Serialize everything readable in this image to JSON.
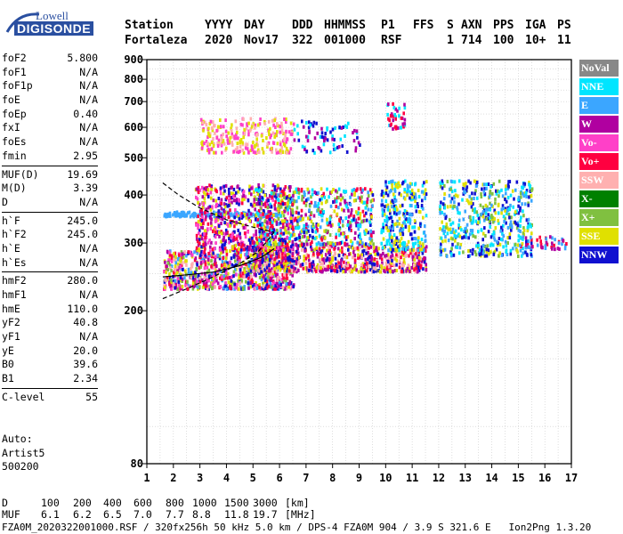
{
  "logo": {
    "line1": "Lowell",
    "line2": "DIGISONDE"
  },
  "header": {
    "labels": [
      "Station",
      "YYYY",
      "DAY",
      "DDD",
      "HHMMSS",
      "P1",
      "FFS",
      "S",
      "AXN",
      "PPS",
      "IGA",
      "PS"
    ],
    "values": [
      "Fortaleza",
      "2020",
      "Nov17",
      "322",
      "001000",
      "RSF",
      "1",
      "714",
      "100",
      "10+",
      "11"
    ]
  },
  "params": [
    [
      {
        "k": "foF2",
        "v": "5.800"
      },
      {
        "k": "foF1",
        "v": "N/A"
      },
      {
        "k": "foF1p",
        "v": "N/A"
      },
      {
        "k": "foE",
        "v": "N/A"
      },
      {
        "k": "foEp",
        "v": "0.40"
      },
      {
        "k": "fxI",
        "v": "N/A"
      },
      {
        "k": "foEs",
        "v": "N/A"
      },
      {
        "k": "fmin",
        "v": "2.95"
      }
    ],
    [
      {
        "k": "MUF(D)",
        "v": "19.69"
      },
      {
        "k": "M(D)",
        "v": "3.39"
      },
      {
        "k": "D",
        "v": "N/A"
      }
    ],
    [
      {
        "k": "h`F",
        "v": "245.0"
      },
      {
        "k": "h`F2",
        "v": "245.0"
      },
      {
        "k": "h`E",
        "v": "N/A"
      },
      {
        "k": "h`Es",
        "v": "N/A"
      }
    ],
    [
      {
        "k": "hmF2",
        "v": "280.0"
      },
      {
        "k": "hmF1",
        "v": "N/A"
      },
      {
        "k": "hmE",
        "v": "110.0"
      },
      {
        "k": "yF2",
        "v": "40.8"
      },
      {
        "k": "yF1",
        "v": "N/A"
      },
      {
        "k": "yE",
        "v": "20.0"
      },
      {
        "k": "B0",
        "v": "39.6"
      },
      {
        "k": "B1",
        "v": "2.34"
      }
    ],
    [
      {
        "k": "C-level",
        "v": "55"
      }
    ]
  ],
  "auto": {
    "line1": "Auto:",
    "line2": "Artist5",
    "line3": "500200"
  },
  "legend": [
    {
      "label": "NoVal",
      "color": "#888888"
    },
    {
      "label": "NNE",
      "color": "#00e5ff"
    },
    {
      "label": "E",
      "color": "#3ba6ff"
    },
    {
      "label": "W",
      "color": "#b000a0"
    },
    {
      "label": "Vo-",
      "color": "#ff40c8"
    },
    {
      "label": "Vo+",
      "color": "#ff0040"
    },
    {
      "label": "SSW",
      "color": "#ffb0b0"
    },
    {
      "label": "X-",
      "color": "#008000"
    },
    {
      "label": "X+",
      "color": "#80c040"
    },
    {
      "label": "SSE",
      "color": "#e0e000"
    },
    {
      "label": "NNW",
      "color": "#1010d0"
    }
  ],
  "muf_table": {
    "d_label": "D",
    "d_values": [
      "100",
      "200",
      "400",
      "600",
      "800",
      "1000",
      "1500",
      "3000"
    ],
    "d_unit": "[km]",
    "muf_label": "MUF",
    "muf_values": [
      "6.1",
      "6.2",
      "6.5",
      "7.0",
      "7.7",
      "8.8",
      "11.8",
      "19.7"
    ],
    "muf_unit": "[MHz]"
  },
  "footer": "FZA0M_2020322001000.RSF / 320fx256h 50 kHz 5.0 km / DPS-4 FZA0M 904 / 3.9 S 321.6 E   Ion2Png 1.3.20",
  "chart_data": {
    "type": "scatter",
    "title": "",
    "xlabel": "",
    "ylabel": "",
    "xlim": [
      1,
      17
    ],
    "ylim": [
      80,
      900
    ],
    "y_scale": "log",
    "grid": true,
    "x_ticks": [
      "1",
      "2",
      "3",
      "4",
      "5",
      "6",
      "7",
      "8",
      "9",
      "10",
      "11",
      "12",
      "13",
      "14",
      "15",
      "16",
      "17"
    ],
    "y_ticks": [
      {
        "value": 80,
        "label": "80"
      },
      {
        "value": 200,
        "label": "200"
      },
      {
        "value": 300,
        "label": "300"
      },
      {
        "value": 400,
        "label": "400"
      },
      {
        "value": 500,
        "label": "500"
      },
      {
        "value": 600,
        "label": "600"
      },
      {
        "value": 700,
        "label": "700"
      },
      {
        "value": 800,
        "label": "800"
      },
      {
        "value": 900,
        "label": "900"
      }
    ],
    "clusters": [
      {
        "x0": 1.6,
        "x1": 6.5,
        "y0": 230,
        "y1": 290,
        "n": 900,
        "colors": [
          "#ff0040",
          "#ff40c8",
          "#e0e000",
          "#ffb0b0",
          "#1010d0",
          "#3ba6ff",
          "#b000a0",
          "#80c040"
        ]
      },
      {
        "x0": 5.0,
        "x1": 11.5,
        "y0": 255,
        "y1": 300,
        "n": 700,
        "colors": [
          "#ffb0b0",
          "#e0e000",
          "#1010d0",
          "#ff0040",
          "#b000a0"
        ]
      },
      {
        "x0": 1.6,
        "x1": 6.0,
        "y0": 355,
        "y1": 365,
        "n": 160,
        "colors": [
          "#3ba6ff"
        ]
      },
      {
        "x0": 2.8,
        "x1": 6.5,
        "y0": 290,
        "y1": 430,
        "n": 600,
        "colors": [
          "#b000a0",
          "#ff40c8",
          "#ff0040",
          "#e0e000",
          "#1010d0"
        ]
      },
      {
        "x0": 5.0,
        "x1": 9.5,
        "y0": 300,
        "y1": 420,
        "n": 600,
        "colors": [
          "#1010d0",
          "#00e5ff",
          "#3ba6ff",
          "#e0e000",
          "#ff0040",
          "#b000a0",
          "#80c040"
        ]
      },
      {
        "x0": 3.0,
        "x1": 6.5,
        "y0": 520,
        "y1": 640,
        "n": 260,
        "colors": [
          "#e0e000",
          "#ffb0b0",
          "#ff40c8"
        ]
      },
      {
        "x0": 6.5,
        "x1": 9.0,
        "y0": 520,
        "y1": 630,
        "n": 80,
        "colors": [
          "#b000a0",
          "#00e5ff",
          "#1010d0"
        ]
      },
      {
        "x0": 9.8,
        "x1": 11.5,
        "y0": 290,
        "y1": 440,
        "n": 300,
        "colors": [
          "#1010d0",
          "#00e5ff",
          "#3ba6ff",
          "#e0e000"
        ]
      },
      {
        "x0": 10.0,
        "x1": 10.7,
        "y0": 600,
        "y1": 700,
        "n": 40,
        "colors": [
          "#00e5ff",
          "#b000a0",
          "#ff0040"
        ]
      },
      {
        "x0": 12.0,
        "x1": 15.5,
        "y0": 280,
        "y1": 440,
        "n": 500,
        "colors": [
          "#1010d0",
          "#00e5ff",
          "#e0e000",
          "#3ba6ff",
          "#80c040"
        ]
      },
      {
        "x0": 15.0,
        "x1": 16.8,
        "y0": 292,
        "y1": 315,
        "n": 50,
        "colors": [
          "#ff0040",
          "#b000a0",
          "#3ba6ff"
        ]
      }
    ],
    "profile_curves": [
      {
        "style": "dashed",
        "points": [
          [
            1.6,
            430
          ],
          [
            2.2,
            400
          ],
          [
            3.0,
            370
          ],
          [
            4.0,
            345
          ],
          [
            5.0,
            330
          ],
          [
            5.8,
            320
          ]
        ]
      },
      {
        "style": "dashed",
        "points": [
          [
            1.6,
            215
          ],
          [
            2.5,
            228
          ],
          [
            3.5,
            245
          ],
          [
            4.5,
            265
          ],
          [
            5.2,
            285
          ],
          [
            5.8,
            320
          ]
        ]
      },
      {
        "style": "solid",
        "points": [
          [
            1.6,
            245
          ],
          [
            2.5,
            248
          ],
          [
            3.5,
            252
          ],
          [
            4.5,
            262
          ],
          [
            5.3,
            275
          ],
          [
            5.8,
            290
          ]
        ]
      }
    ]
  }
}
